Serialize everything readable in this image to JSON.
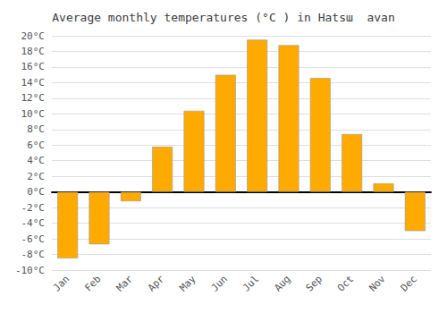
{
  "chart_data": {
    "type": "bar",
    "title": "Average monthly temperatures (°C ) in Hatsա  avan",
    "categories": [
      "Jan",
      "Feb",
      "Mar",
      "Apr",
      "May",
      "Jun",
      "Jul",
      "Aug",
      "Sep",
      "Oct",
      "Nov",
      "Dec"
    ],
    "values": [
      -8.5,
      -6.7,
      -1.2,
      5.8,
      10.4,
      15.0,
      19.5,
      18.8,
      14.6,
      7.4,
      1.1,
      -5.0
    ],
    "color": "#FFAA00",
    "ylim": [
      -10,
      20
    ],
    "yticks": [
      {
        "value": -10,
        "label": "-10°C"
      },
      {
        "value": -8,
        "label": "-8°C"
      },
      {
        "value": -6,
        "label": "-6°C"
      },
      {
        "value": -4,
        "label": "-4°C"
      },
      {
        "value": -2,
        "label": "-2°C"
      },
      {
        "value": 0,
        "label": "0°C"
      },
      {
        "value": 2,
        "label": "2°C"
      },
      {
        "value": 4,
        "label": "4°C"
      },
      {
        "value": 6,
        "label": "6°C"
      },
      {
        "value": 8,
        "label": "8°C"
      },
      {
        "value": 10,
        "label": "10°C"
      },
      {
        "value": 12,
        "label": "12°C"
      },
      {
        "value": 14,
        "label": "14°C"
      },
      {
        "value": 16,
        "label": "16°C"
      },
      {
        "value": 18,
        "label": "18°C"
      },
      {
        "value": 20,
        "label": "20°C"
      }
    ],
    "grid": true
  }
}
